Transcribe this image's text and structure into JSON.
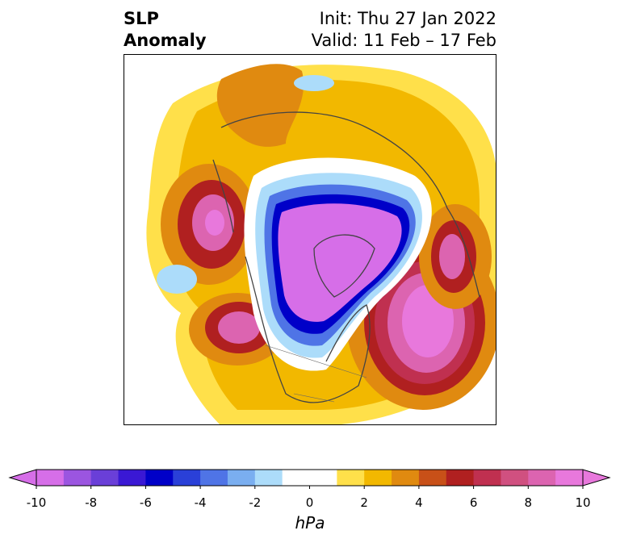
{
  "title": {
    "variable": "SLP",
    "kind": "Anomaly",
    "init": "Init: Thu 27 Jan 2022",
    "valid": "Valid: 11 Feb – 17 Feb"
  },
  "colorbar": {
    "unit": "hPa",
    "ticks": [
      "-10",
      "-8",
      "-6",
      "-4",
      "-2",
      "0",
      "2",
      "4",
      "6",
      "8",
      "10"
    ],
    "levels": [
      -10,
      -9,
      -8,
      -7,
      -6,
      -5,
      -4,
      -3,
      -2,
      -1,
      1,
      2,
      3,
      4,
      5,
      6,
      7,
      8,
      9,
      10
    ],
    "colors": [
      "#d66ee8",
      "#9b55e0",
      "#6a3fd8",
      "#3a18d4",
      "#0000c8",
      "#2a40d8",
      "#4f74e6",
      "#7aaef0",
      "#acdcfa",
      "#ffffff",
      "#ffffff",
      "#ffe04a",
      "#f2b800",
      "#e08a10",
      "#c85018",
      "#b02020",
      "#c03050",
      "#d05080",
      "#dc64b0",
      "#e878dc"
    ],
    "extend_low": "#d66ee8",
    "extend_high": "#e878dc"
  },
  "map": {
    "projection": "north-polar-stereographic",
    "features": [
      "positive-anomaly-west-coast",
      "positive-anomaly-atlantic",
      "negative-anomaly-arctic",
      "positive-anomaly-eurasia"
    ]
  }
}
